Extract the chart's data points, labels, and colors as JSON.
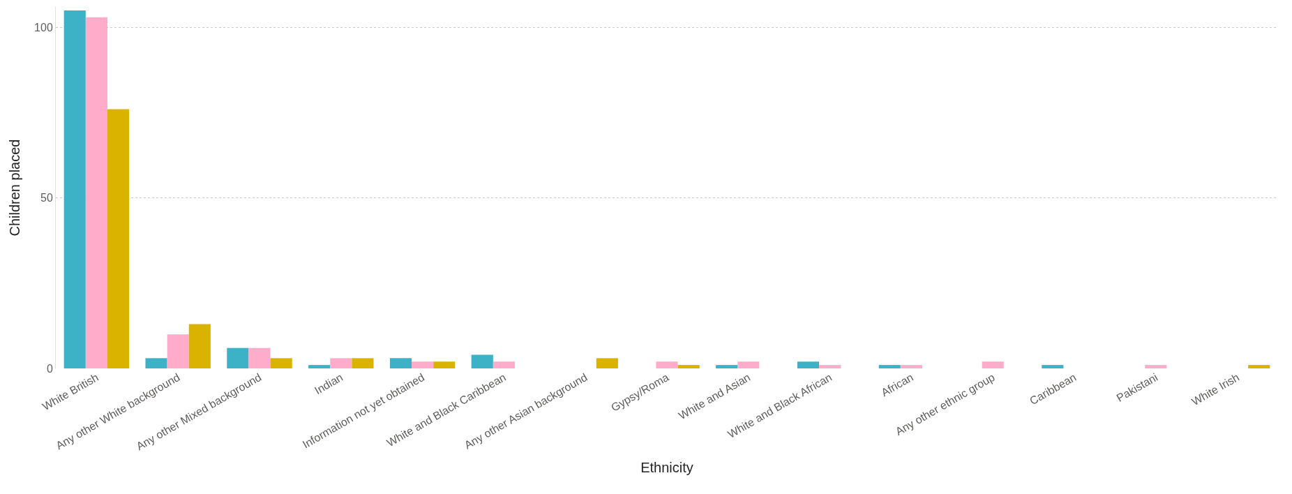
{
  "chart_data": {
    "type": "bar",
    "xlabel": "Ethnicity",
    "ylabel": "Children placed",
    "categories": [
      "White British",
      "Any other White background",
      "Any other Mixed background",
      "Indian",
      "Information not yet obtained",
      "White and Black Caribbean",
      "Any other Asian background",
      "Gypsy/Roma",
      "White and Asian",
      "White and Black African",
      "African",
      "Any other ethnic group",
      "Caribbean",
      "Pakistani",
      "White Irish"
    ],
    "series": [
      {
        "color": "#3db1c5",
        "values": [
          105,
          3,
          6,
          1,
          3,
          4,
          null,
          null,
          1,
          2,
          1,
          null,
          1,
          null,
          null
        ]
      },
      {
        "color": "#ffabca",
        "values": [
          103,
          10,
          6,
          3,
          2,
          2,
          null,
          2,
          2,
          1,
          1,
          2,
          null,
          1,
          null
        ]
      },
      {
        "color": "#d9b300",
        "values": [
          76,
          13,
          3,
          3,
          2,
          null,
          3,
          1,
          null,
          null,
          null,
          null,
          null,
          null,
          1
        ]
      }
    ],
    "ylim": [
      0,
      106
    ],
    "yticks": [
      0,
      50,
      100
    ],
    "grid": "y"
  }
}
